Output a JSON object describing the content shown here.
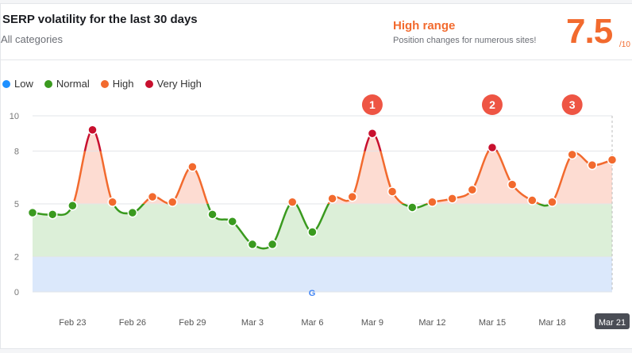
{
  "header": {
    "title": "SERP volatility for the last 30 days",
    "subtitle": "All categories",
    "range_label": "High range",
    "range_desc": "Position changes for numerous sites!",
    "score": "7.5",
    "score_max": "/10"
  },
  "legend": [
    {
      "label": "Low",
      "color": "#1e90ff"
    },
    {
      "label": "Normal",
      "color": "#3a9a1f"
    },
    {
      "label": "High",
      "color": "#f26a2e"
    },
    {
      "label": "Very High",
      "color": "#c8102e"
    }
  ],
  "chart_data": {
    "type": "line",
    "ylim": [
      0,
      10
    ],
    "yticks": [
      "0",
      "2",
      "5",
      "8",
      "10"
    ],
    "x": [
      "Feb 21",
      "Feb 22",
      "Feb 23",
      "Feb 24",
      "Feb 25",
      "Feb 26",
      "Feb 27",
      "Feb 28",
      "Feb 29",
      "Mar 1",
      "Mar 2",
      "Mar 3",
      "Mar 4",
      "Mar 5",
      "Mar 6",
      "Mar 7",
      "Mar 8",
      "Mar 9",
      "Mar 10",
      "Mar 11",
      "Mar 12",
      "Mar 13",
      "Mar 14",
      "Mar 15",
      "Mar 16",
      "Mar 17",
      "Mar 18",
      "Mar 19",
      "Mar 20",
      "Mar 21"
    ],
    "values": [
      4.5,
      4.4,
      4.9,
      9.2,
      5.1,
      4.5,
      5.4,
      5.1,
      7.1,
      4.4,
      4.0,
      2.7,
      2.7,
      5.1,
      3.4,
      5.3,
      5.4,
      9.0,
      5.7,
      4.8,
      5.1,
      5.3,
      5.8,
      8.2,
      6.1,
      5.2,
      5.1,
      7.8,
      7.2,
      7.5
    ],
    "xtick_labels": [
      "Feb 23",
      "Feb 26",
      "Feb 29",
      "Mar 3",
      "Mar 6",
      "Mar 9",
      "Mar 12",
      "Mar 15",
      "Mar 18",
      "Mar 21"
    ],
    "highlighted_tick": "Mar 21",
    "annotations": [
      {
        "label": "1",
        "x": "Mar 9"
      },
      {
        "label": "2",
        "x": "Mar 15"
      },
      {
        "label": "3",
        "x": "Mar 19"
      }
    ],
    "bands": [
      {
        "name": "Low",
        "range": [
          0,
          2
        ],
        "color": "#dbe8fb"
      },
      {
        "name": "Normal",
        "range": [
          2,
          5
        ],
        "color": "#dcefd8"
      },
      {
        "name": "High",
        "range": [
          5,
          10
        ],
        "color": "#fddcd2"
      }
    ],
    "grid": true
  }
}
